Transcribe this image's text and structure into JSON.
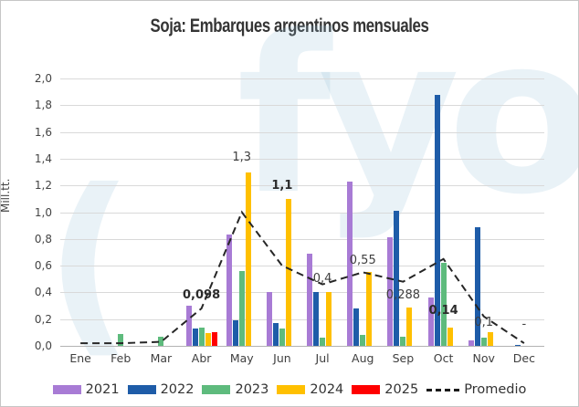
{
  "title": "Soja: Embarques argentinos mensuales",
  "watermark": {
    "paren": "(",
    "text": "fyo"
  },
  "y_axis": {
    "title": "Mill.tt.",
    "tick_labels": [
      "2,0",
      "1,8",
      "1,6",
      "1,4",
      "1,2",
      "1,0",
      "0,8",
      "0,6",
      "0,4",
      "0,2",
      "0,0"
    ]
  },
  "chart_data": {
    "type": "bar",
    "title": "Soja: Embarques argentinos mensuales",
    "xlabel": "",
    "ylabel": "Mill.tt.",
    "ylim": [
      0,
      2.0
    ],
    "y_step": 0.2,
    "grid": true,
    "legend_position": "bottom",
    "categories": [
      "Ene",
      "Feb",
      "Mar",
      "Abr",
      "May",
      "Jun",
      "Jul",
      "Aug",
      "Sep",
      "Oct",
      "Nov",
      "Dec"
    ],
    "series": [
      {
        "name": "2021",
        "type": "bar",
        "color": "#a87bd5",
        "values": [
          0,
          0,
          0,
          0.3,
          0.83,
          0.4,
          0.69,
          1.23,
          0.81,
          0.36,
          0.04,
          0
        ]
      },
      {
        "name": "2022",
        "type": "bar",
        "color": "#1e5ca8",
        "values": [
          0,
          0,
          0,
          0.13,
          0.19,
          0.17,
          0.4,
          0.28,
          1.01,
          1.88,
          0.89,
          0.01
        ]
      },
      {
        "name": "2023",
        "type": "bar",
        "color": "#5ebb7d",
        "values": [
          0,
          0.09,
          0.07,
          0.14,
          0.56,
          0.13,
          0.06,
          0.08,
          0.07,
          0.62,
          0.06,
          0
        ]
      },
      {
        "name": "2024",
        "type": "bar",
        "color": "#ffc000",
        "values": [
          0,
          0,
          0,
          0.098,
          1.3,
          1.1,
          0.4,
          0.55,
          0.288,
          0.14,
          0.1,
          0
        ]
      },
      {
        "name": "2025",
        "type": "bar",
        "color": "#ff0000",
        "values": [
          0,
          0,
          0,
          0.1,
          0,
          0,
          0,
          0,
          0,
          0,
          0,
          0
        ]
      },
      {
        "name": "Promedio",
        "type": "line",
        "style": "dashed",
        "color": "#262626",
        "values": [
          0.02,
          0.02,
          0.03,
          0.28,
          1.0,
          0.6,
          0.46,
          0.55,
          0.48,
          0.65,
          0.22,
          0.02
        ]
      }
    ],
    "data_labels": [
      {
        "category": "Abr",
        "text": "0,098",
        "bold": true,
        "y": 0.33
      },
      {
        "category": "May",
        "text": "1,3",
        "bold": false,
        "y": 1.36
      },
      {
        "category": "Jun",
        "text": "1,1",
        "bold": true,
        "y": 1.15
      },
      {
        "category": "Jul",
        "text": "0,4",
        "bold": false,
        "y": 0.45
      },
      {
        "category": "Aug",
        "text": "0,55",
        "bold": false,
        "y": 0.59
      },
      {
        "category": "Sep",
        "text": "0,288",
        "bold": false,
        "y": 0.33
      },
      {
        "category": "Oct",
        "text": "0,14",
        "bold": true,
        "y": 0.215
      },
      {
        "category": "Nov",
        "text": "0,1",
        "bold": false,
        "y": 0.125
      },
      {
        "category": "Dec",
        "text": "-",
        "bold": false,
        "y": 0.11
      }
    ]
  },
  "legend": [
    {
      "label": "2021",
      "color": "#a87bd5",
      "type": "box"
    },
    {
      "label": "2022",
      "color": "#1e5ca8",
      "type": "box"
    },
    {
      "label": "2023",
      "color": "#5ebb7d",
      "type": "box"
    },
    {
      "label": "2024",
      "color": "#ffc000",
      "type": "box"
    },
    {
      "label": "2025",
      "color": "#ff0000",
      "type": "box"
    },
    {
      "label": "Promedio",
      "color": "#1a1a1a",
      "type": "dash"
    }
  ]
}
